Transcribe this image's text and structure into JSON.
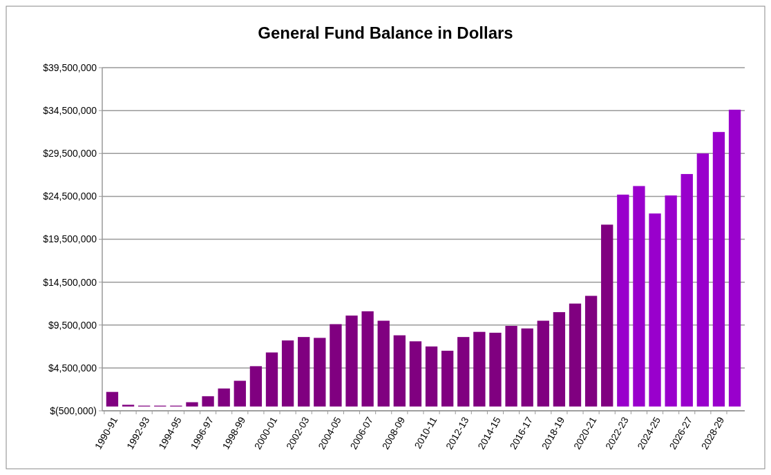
{
  "chart_data": {
    "type": "bar",
    "title": "General Fund Balance in Dollars",
    "categories": [
      "1990-91",
      null,
      "1992-93",
      null,
      "1994-95",
      null,
      "1996-97",
      null,
      "1998-99",
      null,
      "2000-01",
      null,
      "2002-03",
      null,
      "2004-05",
      null,
      "2006-07",
      null,
      "2008-09",
      null,
      "2010-11",
      null,
      "2012-13",
      null,
      "2014-15",
      null,
      "2016-17",
      null,
      "2018-19",
      null,
      "2020-21",
      null,
      "2022-23",
      null,
      "2024-25",
      null,
      "2026-27",
      null,
      "2028-29",
      null
    ],
    "values": [
      1700000,
      200000,
      100000,
      100000,
      100000,
      500000,
      1200000,
      2100000,
      3000000,
      4700000,
      6300000,
      7700000,
      8100000,
      8000000,
      9600000,
      10600000,
      11100000,
      10000000,
      8300000,
      7600000,
      7000000,
      6500000,
      8100000,
      8700000,
      8600000,
      9400000,
      9100000,
      10000000,
      11000000,
      12000000,
      12900000,
      21200000,
      24700000,
      25700000,
      22500000,
      24600000,
      27100000,
      29500000,
      32000000,
      34600000
    ],
    "colors": [
      "#800080",
      "#800080",
      "#800080",
      "#800080",
      "#800080",
      "#800080",
      "#800080",
      "#800080",
      "#800080",
      "#800080",
      "#800080",
      "#800080",
      "#800080",
      "#800080",
      "#800080",
      "#800080",
      "#800080",
      "#800080",
      "#800080",
      "#800080",
      "#800080",
      "#800080",
      "#800080",
      "#800080",
      "#800080",
      "#800080",
      "#800080",
      "#800080",
      "#800080",
      "#800080",
      "#800080",
      "#800080",
      "#9900cc",
      "#9900cc",
      "#9900cc",
      "#9900cc",
      "#9900cc",
      "#9900cc",
      "#9900cc",
      "#9900cc"
    ],
    "ylim": [
      -500000,
      39500000
    ],
    "yticks": [
      {
        "value": -500000,
        "label": "$(500,000)"
      },
      {
        "value": 4500000,
        "label": "$4,500,000"
      },
      {
        "value": 9500000,
        "label": "$9,500,000"
      },
      {
        "value": 14500000,
        "label": "$14,500,000"
      },
      {
        "value": 19500000,
        "label": "$19,500,000"
      },
      {
        "value": 24500000,
        "label": "$24,500,000"
      },
      {
        "value": 29500000,
        "label": "$29,500,000"
      },
      {
        "value": 34500000,
        "label": "$34,500,000"
      },
      {
        "value": 39500000,
        "label": "$39,500,000"
      }
    ],
    "grid": "y"
  }
}
